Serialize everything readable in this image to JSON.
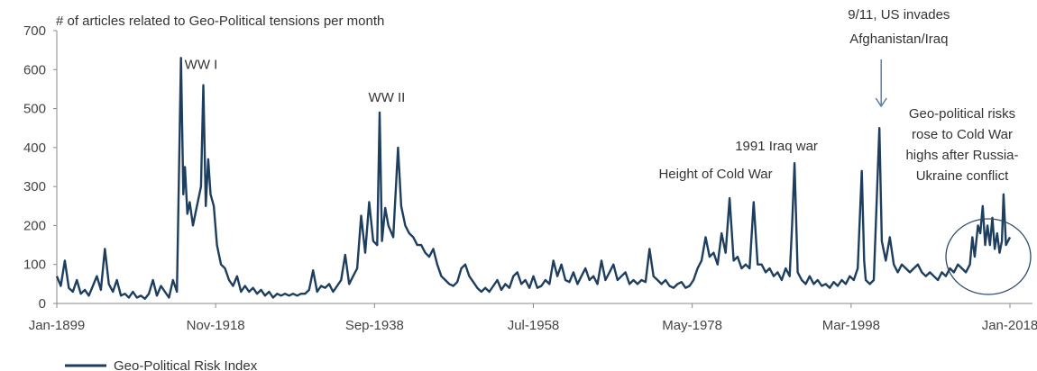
{
  "chart_data": {
    "type": "line",
    "title": "",
    "ylabel": "# of articles related to Geo-Political tensions per month",
    "xlabel": "",
    "ylim": [
      0,
      700
    ],
    "yticks": [
      0,
      100,
      200,
      300,
      400,
      500,
      600,
      700
    ],
    "xlim": [
      1899.0,
      2018.0
    ],
    "xticks": [
      {
        "x": 1899.0,
        "label": "Jan-1899"
      },
      {
        "x": 1918.83,
        "label": "Nov-1918"
      },
      {
        "x": 1938.67,
        "label": "Sep-1938"
      },
      {
        "x": 1958.5,
        "label": "Jul-1958"
      },
      {
        "x": 1978.33,
        "label": "May-1978"
      },
      {
        "x": 1998.17,
        "label": "Mar-1998"
      },
      {
        "x": 2018.0,
        "label": "Jan-2018"
      }
    ],
    "grid": false,
    "legend_position": "bottom-left",
    "series": [
      {
        "name": "Geo-Political Risk Index",
        "color": "#1d3e5e",
        "points": [
          [
            1899.0,
            70
          ],
          [
            1899.5,
            45
          ],
          [
            1900.0,
            110
          ],
          [
            1900.5,
            40
          ],
          [
            1901.0,
            30
          ],
          [
            1901.5,
            60
          ],
          [
            1902.0,
            25
          ],
          [
            1902.5,
            35
          ],
          [
            1903.0,
            20
          ],
          [
            1903.5,
            45
          ],
          [
            1904.0,
            70
          ],
          [
            1904.5,
            35
          ],
          [
            1905.0,
            140
          ],
          [
            1905.5,
            50
          ],
          [
            1906.0,
            30
          ],
          [
            1906.5,
            60
          ],
          [
            1907.0,
            20
          ],
          [
            1907.5,
            25
          ],
          [
            1908.0,
            15
          ],
          [
            1908.5,
            30
          ],
          [
            1909.0,
            15
          ],
          [
            1909.5,
            20
          ],
          [
            1910.0,
            12
          ],
          [
            1910.5,
            25
          ],
          [
            1911.0,
            60
          ],
          [
            1911.5,
            20
          ],
          [
            1912.0,
            45
          ],
          [
            1912.5,
            30
          ],
          [
            1913.0,
            15
          ],
          [
            1913.5,
            60
          ],
          [
            1914.0,
            30
          ],
          [
            1914.5,
            630
          ],
          [
            1914.8,
            280
          ],
          [
            1915.0,
            350
          ],
          [
            1915.3,
            230
          ],
          [
            1915.6,
            260
          ],
          [
            1916.0,
            200
          ],
          [
            1916.5,
            250
          ],
          [
            1917.0,
            300
          ],
          [
            1917.3,
            560
          ],
          [
            1917.6,
            250
          ],
          [
            1917.9,
            370
          ],
          [
            1918.2,
            280
          ],
          [
            1918.6,
            250
          ],
          [
            1919.0,
            150
          ],
          [
            1919.5,
            100
          ],
          [
            1920.0,
            90
          ],
          [
            1920.5,
            60
          ],
          [
            1921.0,
            45
          ],
          [
            1921.5,
            70
          ],
          [
            1922.0,
            30
          ],
          [
            1922.5,
            45
          ],
          [
            1923.0,
            30
          ],
          [
            1923.5,
            40
          ],
          [
            1924.0,
            25
          ],
          [
            1924.5,
            35
          ],
          [
            1925.0,
            20
          ],
          [
            1925.5,
            30
          ],
          [
            1926.0,
            15
          ],
          [
            1926.5,
            25
          ],
          [
            1927.0,
            20
          ],
          [
            1927.5,
            25
          ],
          [
            1928.0,
            20
          ],
          [
            1928.5,
            25
          ],
          [
            1929.0,
            20
          ],
          [
            1929.5,
            25
          ],
          [
            1930.0,
            25
          ],
          [
            1930.5,
            35
          ],
          [
            1931.0,
            85
          ],
          [
            1931.5,
            30
          ],
          [
            1932.0,
            45
          ],
          [
            1932.5,
            40
          ],
          [
            1933.0,
            50
          ],
          [
            1933.5,
            30
          ],
          [
            1934.0,
            45
          ],
          [
            1934.5,
            60
          ],
          [
            1935.0,
            125
          ],
          [
            1935.5,
            50
          ],
          [
            1936.0,
            70
          ],
          [
            1936.5,
            90
          ],
          [
            1937.0,
            225
          ],
          [
            1937.5,
            130
          ],
          [
            1938.0,
            260
          ],
          [
            1938.5,
            160
          ],
          [
            1939.0,
            150
          ],
          [
            1939.3,
            490
          ],
          [
            1939.6,
            160
          ],
          [
            1940.0,
            245
          ],
          [
            1940.4,
            200
          ],
          [
            1940.8,
            180
          ],
          [
            1941.0,
            170
          ],
          [
            1941.6,
            400
          ],
          [
            1942.0,
            250
          ],
          [
            1942.5,
            200
          ],
          [
            1943.0,
            180
          ],
          [
            1943.5,
            170
          ],
          [
            1944.0,
            150
          ],
          [
            1944.5,
            150
          ],
          [
            1945.0,
            130
          ],
          [
            1945.5,
            120
          ],
          [
            1946.0,
            140
          ],
          [
            1946.5,
            100
          ],
          [
            1947.0,
            70
          ],
          [
            1947.5,
            60
          ],
          [
            1948.0,
            50
          ],
          [
            1948.5,
            45
          ],
          [
            1949.0,
            55
          ],
          [
            1949.5,
            90
          ],
          [
            1950.0,
            100
          ],
          [
            1950.5,
            70
          ],
          [
            1951.0,
            55
          ],
          [
            1951.5,
            40
          ],
          [
            1952.0,
            30
          ],
          [
            1952.5,
            40
          ],
          [
            1953.0,
            30
          ],
          [
            1953.5,
            45
          ],
          [
            1954.0,
            60
          ],
          [
            1954.5,
            35
          ],
          [
            1955.0,
            50
          ],
          [
            1955.5,
            40
          ],
          [
            1956.0,
            70
          ],
          [
            1956.5,
            80
          ],
          [
            1957.0,
            50
          ],
          [
            1957.5,
            60
          ],
          [
            1958.0,
            40
          ],
          [
            1958.5,
            70
          ],
          [
            1959.0,
            40
          ],
          [
            1959.5,
            45
          ],
          [
            1960.0,
            60
          ],
          [
            1960.5,
            50
          ],
          [
            1961.0,
            110
          ],
          [
            1961.5,
            70
          ],
          [
            1962.0,
            100
          ],
          [
            1962.5,
            60
          ],
          [
            1963.0,
            55
          ],
          [
            1963.5,
            80
          ],
          [
            1964.0,
            50
          ],
          [
            1964.5,
            70
          ],
          [
            1965.0,
            90
          ],
          [
            1965.5,
            60
          ],
          [
            1966.0,
            70
          ],
          [
            1966.5,
            50
          ],
          [
            1967.0,
            110
          ],
          [
            1967.5,
            60
          ],
          [
            1968.0,
            80
          ],
          [
            1968.5,
            100
          ],
          [
            1969.0,
            60
          ],
          [
            1969.5,
            70
          ],
          [
            1970.0,
            80
          ],
          [
            1970.5,
            50
          ],
          [
            1971.0,
            60
          ],
          [
            1971.5,
            50
          ],
          [
            1972.0,
            60
          ],
          [
            1972.5,
            55
          ],
          [
            1973.0,
            140
          ],
          [
            1973.5,
            70
          ],
          [
            1974.0,
            60
          ],
          [
            1974.5,
            50
          ],
          [
            1975.0,
            60
          ],
          [
            1975.5,
            45
          ],
          [
            1976.0,
            40
          ],
          [
            1976.5,
            50
          ],
          [
            1977.0,
            55
          ],
          [
            1977.5,
            40
          ],
          [
            1978.0,
            45
          ],
          [
            1978.5,
            60
          ],
          [
            1979.0,
            90
          ],
          [
            1979.5,
            110
          ],
          [
            1980.0,
            170
          ],
          [
            1980.5,
            120
          ],
          [
            1981.0,
            130
          ],
          [
            1981.5,
            100
          ],
          [
            1982.0,
            180
          ],
          [
            1982.5,
            130
          ],
          [
            1983.0,
            270
          ],
          [
            1983.5,
            110
          ],
          [
            1984.0,
            120
          ],
          [
            1984.5,
            90
          ],
          [
            1985.0,
            100
          ],
          [
            1985.5,
            90
          ],
          [
            1986.0,
            260
          ],
          [
            1986.5,
            100
          ],
          [
            1987.0,
            100
          ],
          [
            1987.5,
            80
          ],
          [
            1988.0,
            90
          ],
          [
            1988.5,
            70
          ],
          [
            1989.0,
            80
          ],
          [
            1989.5,
            60
          ],
          [
            1990.0,
            90
          ],
          [
            1990.5,
            70
          ],
          [
            1990.8,
            200
          ],
          [
            1991.1,
            360
          ],
          [
            1991.5,
            80
          ],
          [
            1992.0,
            60
          ],
          [
            1992.5,
            50
          ],
          [
            1993.0,
            70
          ],
          [
            1993.5,
            50
          ],
          [
            1994.0,
            60
          ],
          [
            1994.5,
            45
          ],
          [
            1995.0,
            50
          ],
          [
            1995.5,
            40
          ],
          [
            1996.0,
            55
          ],
          [
            1996.5,
            45
          ],
          [
            1997.0,
            60
          ],
          [
            1997.5,
            50
          ],
          [
            1998.0,
            70
          ],
          [
            1998.5,
            60
          ],
          [
            1999.0,
            90
          ],
          [
            1999.5,
            340
          ],
          [
            1999.8,
            110
          ],
          [
            2000.0,
            60
          ],
          [
            2000.5,
            50
          ],
          [
            2001.0,
            60
          ],
          [
            2001.7,
            450
          ],
          [
            2002.0,
            160
          ],
          [
            2002.5,
            110
          ],
          [
            2003.0,
            170
          ],
          [
            2003.5,
            100
          ],
          [
            2004.0,
            80
          ],
          [
            2004.5,
            100
          ],
          [
            2005.0,
            90
          ],
          [
            2005.5,
            80
          ],
          [
            2006.0,
            90
          ],
          [
            2006.5,
            100
          ],
          [
            2007.0,
            80
          ],
          [
            2007.5,
            70
          ],
          [
            2008.0,
            80
          ],
          [
            2008.5,
            70
          ],
          [
            2009.0,
            60
          ],
          [
            2009.5,
            80
          ],
          [
            2010.0,
            70
          ],
          [
            2010.5,
            90
          ],
          [
            2011.0,
            80
          ],
          [
            2011.5,
            100
          ],
          [
            2012.0,
            90
          ],
          [
            2012.5,
            80
          ],
          [
            2013.0,
            100
          ],
          [
            2013.3,
            170
          ],
          [
            2013.6,
            120
          ],
          [
            2014.0,
            200
          ],
          [
            2014.3,
            180
          ],
          [
            2014.6,
            250
          ],
          [
            2014.9,
            150
          ],
          [
            2015.2,
            200
          ],
          [
            2015.5,
            150
          ],
          [
            2015.8,
            220
          ],
          [
            2016.1,
            140
          ],
          [
            2016.4,
            180
          ],
          [
            2016.7,
            130
          ],
          [
            2017.0,
            160
          ],
          [
            2017.2,
            280
          ],
          [
            2017.5,
            150
          ],
          [
            2018.0,
            170
          ]
        ]
      }
    ],
    "annotations": [
      {
        "text": "WW I",
        "x": 1915.0,
        "y": 630
      },
      {
        "text": "WW II",
        "x": 1939.3,
        "y": 490
      },
      {
        "text": "Height of Cold War",
        "x": 1983.5,
        "y": 270
      },
      {
        "text": "1991 Iraq war",
        "x": 1990.8,
        "y": 360
      },
      {
        "lines": [
          "9/11, US invades",
          "Afghanistan/Iraq"
        ],
        "x": 2003.8,
        "y": 700,
        "arrow": true
      },
      {
        "lines": [
          "Geo-political risks",
          "rose to Cold War",
          "highs after Russia-",
          "Ukraine  conflict"
        ],
        "x": 2013.0,
        "y": 490,
        "circled": true
      }
    ]
  }
}
